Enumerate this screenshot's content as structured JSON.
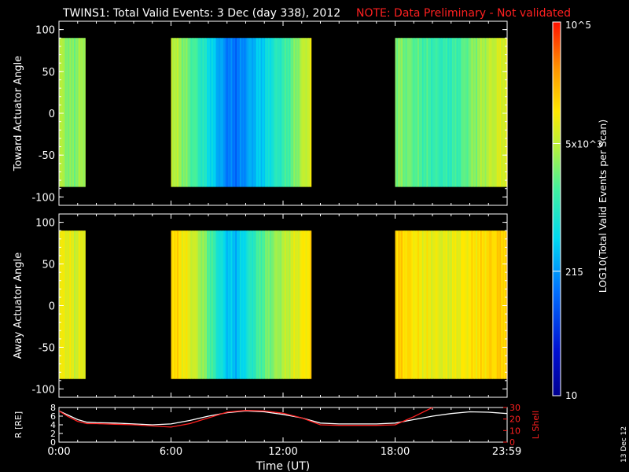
{
  "title": {
    "main": "TWINS1: Total Valid Events:  3 Dec (day 338), 2012",
    "note": "NOTE: Data Preliminary - Not validated"
  },
  "colors": {
    "background": "#000000",
    "axes": "#ffffff",
    "note": "#ff2020",
    "l_shell": "#ff2020",
    "radius": "#ffffff"
  },
  "colorbar": {
    "label": "LOG10(Total Valid Events per Scan)",
    "ticks": [
      {
        "value": 10,
        "label": "10"
      },
      {
        "value": 215,
        "label": "215"
      },
      {
        "value": 5000,
        "label": "5x10^3"
      },
      {
        "value": 100000,
        "label": "10^5"
      }
    ],
    "min": 10,
    "max": 100000,
    "scale": "log"
  },
  "x_axis": {
    "label": "Time (UT)",
    "ticks": [
      "0:00",
      "6:00",
      "12:00",
      "18:00",
      "23:59"
    ],
    "tick_hours": [
      0,
      6,
      12,
      18,
      23.983
    ],
    "range_hours": [
      0,
      24
    ]
  },
  "footer_date": "13 Dec 12",
  "chart_data": [
    {
      "type": "heatmap",
      "ylabel": "Toward Actuator Angle",
      "ylim": [
        -110,
        110
      ],
      "yticks": [
        100,
        50,
        0,
        -50,
        -100
      ],
      "angle_range": [
        -88,
        90
      ],
      "intervals": [
        {
          "start": 0.0,
          "end": 1.4,
          "profile": [
            [
              0,
              0.66
            ],
            [
              0.3,
              0.64
            ],
            [
              0.6,
              0.6
            ],
            [
              0.9,
              0.62
            ],
            [
              1.2,
              0.64
            ],
            [
              1.4,
              0.66
            ]
          ]
        },
        {
          "start": 6.0,
          "end": 13.5,
          "profile": [
            [
              6.0,
              0.7
            ],
            [
              6.3,
              0.66
            ],
            [
              6.8,
              0.6
            ],
            [
              7.5,
              0.52
            ],
            [
              8.0,
              0.45
            ],
            [
              8.5,
              0.37
            ],
            [
              9.0,
              0.3
            ],
            [
              9.5,
              0.28
            ],
            [
              10.0,
              0.33
            ],
            [
              10.5,
              0.38
            ],
            [
              11.0,
              0.42
            ],
            [
              11.5,
              0.48
            ],
            [
              12.0,
              0.52
            ],
            [
              12.5,
              0.58
            ],
            [
              13.0,
              0.66
            ],
            [
              13.5,
              0.72
            ]
          ]
        },
        {
          "start": 18.0,
          "end": 24.0,
          "profile": [
            [
              18.0,
              0.62
            ],
            [
              18.5,
              0.6
            ],
            [
              19.0,
              0.58
            ],
            [
              19.5,
              0.55
            ],
            [
              20.0,
              0.53
            ],
            [
              20.5,
              0.52
            ],
            [
              21.0,
              0.52
            ],
            [
              21.5,
              0.55
            ],
            [
              22.0,
              0.6
            ],
            [
              22.5,
              0.64
            ],
            [
              23.0,
              0.67
            ],
            [
              23.5,
              0.7
            ],
            [
              24.0,
              0.72
            ]
          ]
        }
      ]
    },
    {
      "type": "heatmap",
      "ylabel": "Away Actuator Angle",
      "ylim": [
        -110,
        110
      ],
      "yticks": [
        100,
        50,
        0,
        -50,
        -100
      ],
      "angle_range": [
        -88,
        90
      ],
      "intervals": [
        {
          "start": 0.0,
          "end": 1.4,
          "profile": [
            [
              0,
              0.72
            ],
            [
              0.3,
              0.74
            ],
            [
              0.6,
              0.72
            ],
            [
              0.9,
              0.7
            ],
            [
              1.2,
              0.72
            ],
            [
              1.4,
              0.74
            ]
          ]
        },
        {
          "start": 6.0,
          "end": 13.5,
          "profile": [
            [
              6.0,
              0.8
            ],
            [
              6.5,
              0.76
            ],
            [
              7.0,
              0.72
            ],
            [
              7.5,
              0.66
            ],
            [
              8.0,
              0.58
            ],
            [
              8.5,
              0.48
            ],
            [
              9.0,
              0.4
            ],
            [
              9.5,
              0.38
            ],
            [
              10.0,
              0.45
            ],
            [
              10.5,
              0.52
            ],
            [
              11.0,
              0.58
            ],
            [
              11.5,
              0.62
            ],
            [
              12.0,
              0.66
            ],
            [
              12.5,
              0.7
            ],
            [
              13.0,
              0.74
            ],
            [
              13.5,
              0.78
            ]
          ]
        },
        {
          "start": 18.0,
          "end": 24.0,
          "profile": [
            [
              18.0,
              0.8
            ],
            [
              18.5,
              0.78
            ],
            [
              19.0,
              0.76
            ],
            [
              19.5,
              0.74
            ],
            [
              20.0,
              0.73
            ],
            [
              20.5,
              0.72
            ],
            [
              21.0,
              0.72
            ],
            [
              21.5,
              0.74
            ],
            [
              22.0,
              0.76
            ],
            [
              22.5,
              0.77
            ],
            [
              23.0,
              0.78
            ],
            [
              23.5,
              0.79
            ],
            [
              24.0,
              0.8
            ]
          ]
        }
      ]
    },
    {
      "type": "line",
      "ylabel_left": "R [RE]",
      "ylabel_right": "L Shell",
      "ylim_left": [
        0,
        8
      ],
      "yticks_left": [
        0,
        2,
        4,
        6,
        8
      ],
      "ylim_right": [
        0,
        30
      ],
      "yticks_right": [
        0,
        10,
        20,
        30
      ],
      "series": [
        {
          "axis": "left",
          "x": [
            0,
            0.5,
            1,
            1.5,
            2,
            3,
            4,
            5,
            6,
            7,
            8,
            9,
            10,
            11,
            12,
            13,
            13.5,
            14,
            15,
            16,
            17,
            18,
            19,
            20,
            21,
            22,
            23,
            24
          ],
          "y": [
            7.2,
            6.2,
            5.2,
            4.6,
            4.5,
            4.4,
            4.2,
            4.0,
            4.2,
            5.0,
            6.0,
            6.8,
            7.2,
            7.0,
            6.4,
            5.6,
            5.0,
            4.4,
            4.2,
            4.2,
            4.2,
            4.4,
            5.2,
            6.0,
            6.6,
            7.0,
            6.9,
            6.6
          ]
        },
        {
          "axis": "right",
          "x": [
            0,
            0.5,
            1,
            1.5,
            2,
            3,
            4,
            5,
            6,
            7,
            8,
            9,
            10,
            11,
            12,
            13,
            13.5,
            14,
            15,
            16,
            17,
            18,
            19,
            20,
            20.5
          ],
          "y": [
            27,
            22,
            18,
            16,
            16,
            15.5,
            15,
            14,
            13,
            16,
            21,
            26,
            27.5,
            27,
            25,
            21,
            18,
            15,
            14.5,
            14.5,
            14.5,
            15,
            22,
            30,
            33
          ]
        }
      ]
    }
  ]
}
